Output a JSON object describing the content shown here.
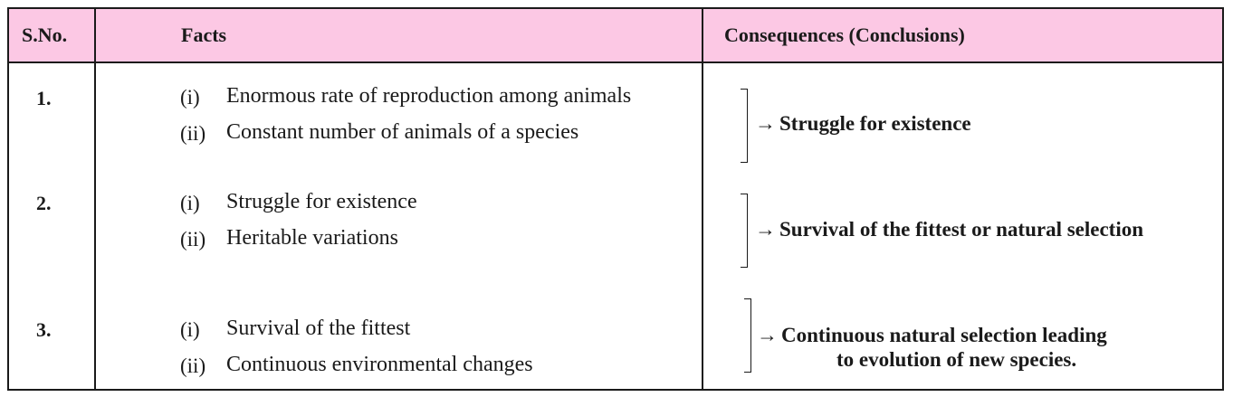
{
  "header": {
    "sno": "S.No.",
    "facts": "Facts",
    "consequences": "Consequences (Conclusions)"
  },
  "rows": [
    {
      "sno": "1.",
      "facts": [
        {
          "num": "(i)",
          "text": "Enormous rate of reproduction among animals"
        },
        {
          "num": "(ii)",
          "text": "Constant number of animals of a species"
        }
      ],
      "arrow": "→",
      "conclusion": [
        "Struggle for existence"
      ]
    },
    {
      "sno": "2.",
      "facts": [
        {
          "num": "(i)",
          "text": "Struggle for existence"
        },
        {
          "num": "(ii)",
          "text": "Heritable variations"
        }
      ],
      "arrow": "→",
      "conclusion": [
        "Survival of the fittest or natural selection"
      ]
    },
    {
      "sno": "3.",
      "facts": [
        {
          "num": "(i)",
          "text": "Survival of the fittest"
        },
        {
          "num": "(ii)",
          "text": "Continuous environmental changes"
        }
      ],
      "arrow": "→",
      "conclusion": [
        "Continuous natural selection leading",
        "to evolution of new species."
      ]
    }
  ],
  "colors": {
    "header_bg": "#fcc8e4",
    "border": "#1a1a1a"
  }
}
